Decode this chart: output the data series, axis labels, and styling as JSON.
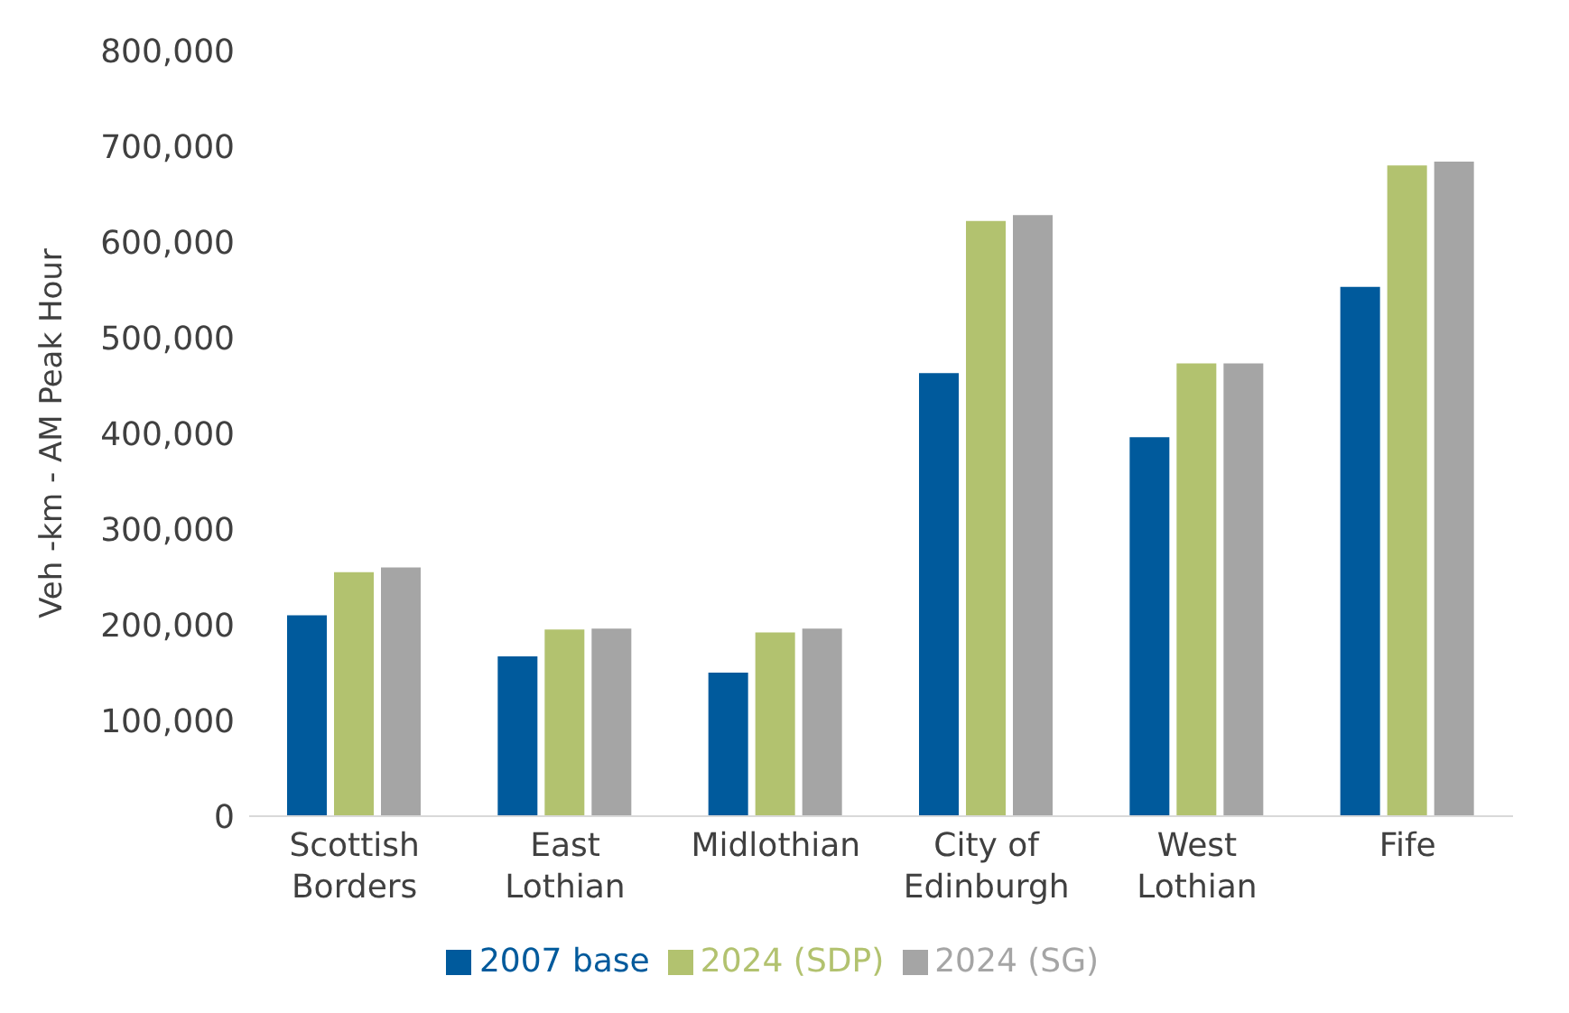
{
  "chart_data": {
    "type": "bar",
    "ylabel": "Veh -km  - AM Peak Hour",
    "categories": [
      "Scottish Borders",
      "East Lothian",
      "Midlothian",
      "City of Edinburgh",
      "West Lothian",
      "Fife"
    ],
    "series": [
      {
        "name": "2007 base",
        "color": "#005a9c",
        "values": [
          210000,
          167000,
          150000,
          463000,
          396000,
          553000
        ]
      },
      {
        "name": "2024 (SDP)",
        "color": "#b2c26f",
        "values": [
          255000,
          195000,
          192000,
          622000,
          473000,
          680000
        ]
      },
      {
        "name": "2024 (SG)",
        "color": "#a5a5a5",
        "values": [
          260000,
          196000,
          196000,
          628000,
          473000,
          684000
        ]
      }
    ],
    "ylim": [
      0,
      800000
    ],
    "yticks": [
      {
        "value": 0,
        "label": "0"
      },
      {
        "value": 100000,
        "label": "100,000"
      },
      {
        "value": 200000,
        "label": "200,000"
      },
      {
        "value": 300000,
        "label": "300,000"
      },
      {
        "value": 400000,
        "label": "400,000"
      },
      {
        "value": 500000,
        "label": "500,000"
      },
      {
        "value": 600000,
        "label": "600,000"
      },
      {
        "value": 700000,
        "label": "700,000"
      },
      {
        "value": 800000,
        "label": "800,000"
      }
    ],
    "grid": false,
    "legend": "bottom"
  }
}
